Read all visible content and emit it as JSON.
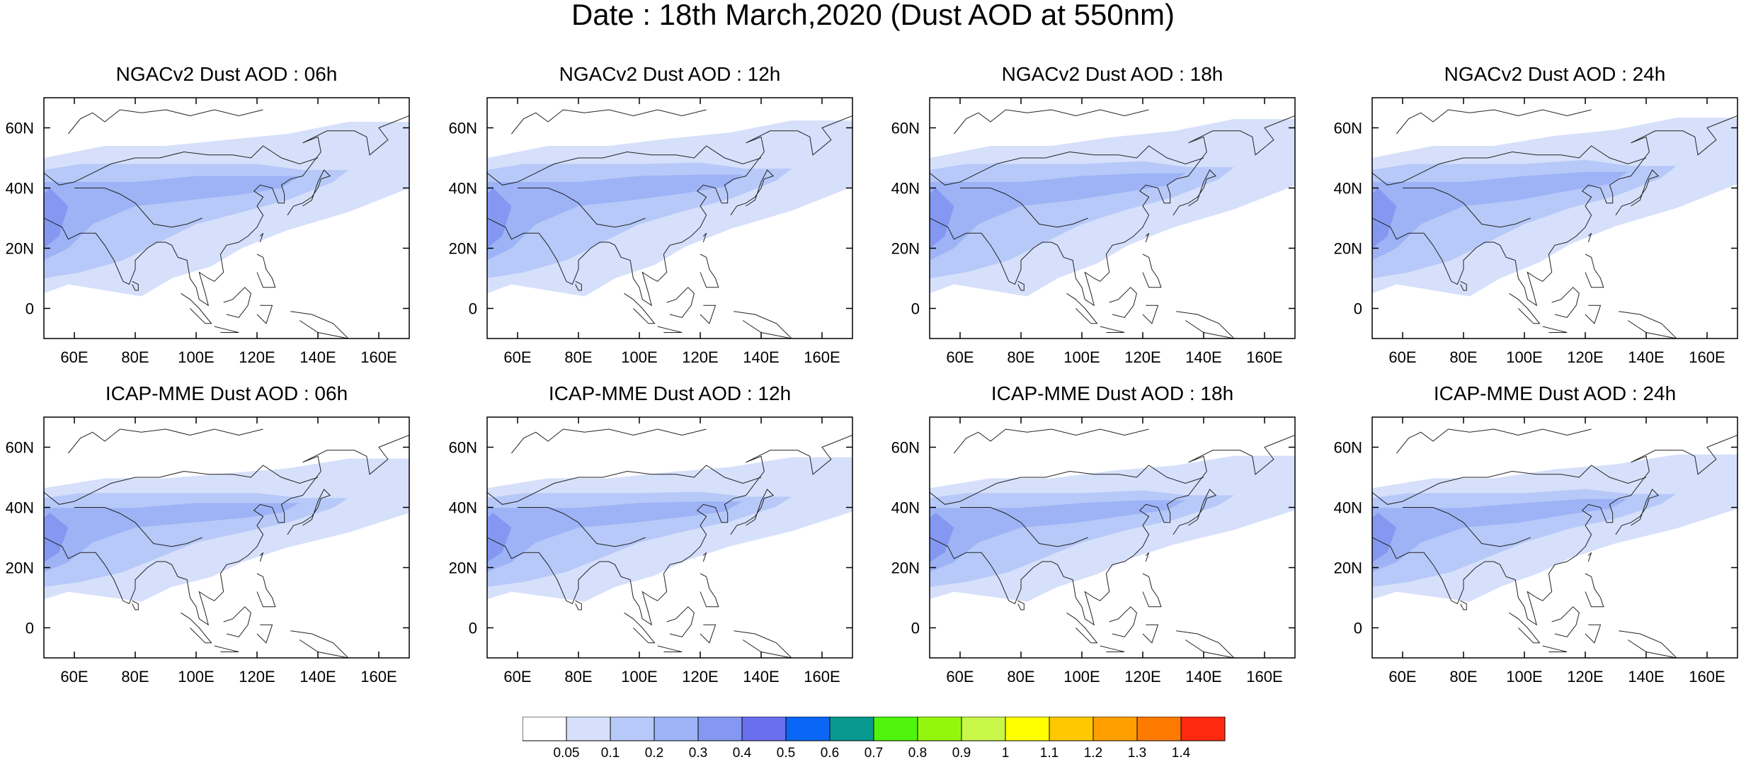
{
  "title": "Date : 18th March,2020 (Dust AOD at 550nm)",
  "map": {
    "lon_range": [
      50,
      170
    ],
    "lat_range": [
      -10,
      70
    ],
    "lon_ticks": [
      "60E",
      "80E",
      "100E",
      "120E",
      "140E",
      "160E"
    ],
    "lat_ticks": [
      "0",
      "20N",
      "40N",
      "60N"
    ],
    "lon_tick_values": [
      60,
      80,
      100,
      120,
      140,
      160
    ],
    "lat_tick_values": [
      0,
      20,
      40,
      60
    ]
  },
  "panels": [
    {
      "title": "NGACv2 Dust AOD : 06h",
      "model": "NGACv2",
      "hour": "06h"
    },
    {
      "title": "NGACv2 Dust AOD : 12h",
      "model": "NGACv2",
      "hour": "12h"
    },
    {
      "title": "NGACv2 Dust AOD : 18h",
      "model": "NGACv2",
      "hour": "18h"
    },
    {
      "title": "NGACv2 Dust AOD : 24h",
      "model": "NGACv2",
      "hour": "24h"
    },
    {
      "title": "ICAP-MME Dust AOD : 06h",
      "model": "ICAP-MME",
      "hour": "06h"
    },
    {
      "title": "ICAP-MME Dust AOD : 12h",
      "model": "ICAP-MME",
      "hour": "12h"
    },
    {
      "title": "ICAP-MME Dust AOD : 18h",
      "model": "ICAP-MME",
      "hour": "18h"
    },
    {
      "title": "ICAP-MME Dust AOD : 24h",
      "model": "ICAP-MME",
      "hour": "24h"
    }
  ],
  "colorbar": {
    "labels": [
      "0.05",
      "0.1",
      "0.2",
      "0.3",
      "0.4",
      "0.5",
      "0.6",
      "0.7",
      "0.8",
      "0.9",
      "1",
      "1.1",
      "1.2",
      "1.3",
      "1.4"
    ],
    "colors": [
      "#ffffff",
      "#d6e0fb",
      "#b7c9f8",
      "#9db3f6",
      "#8498f2",
      "#6a6ff0",
      "#0a67f5",
      "#08998f",
      "#4ff50c",
      "#93f70d",
      "#c8f74a",
      "#ffff00",
      "#ffc800",
      "#ffa000",
      "#ff7a00",
      "#ff2a10"
    ]
  }
}
